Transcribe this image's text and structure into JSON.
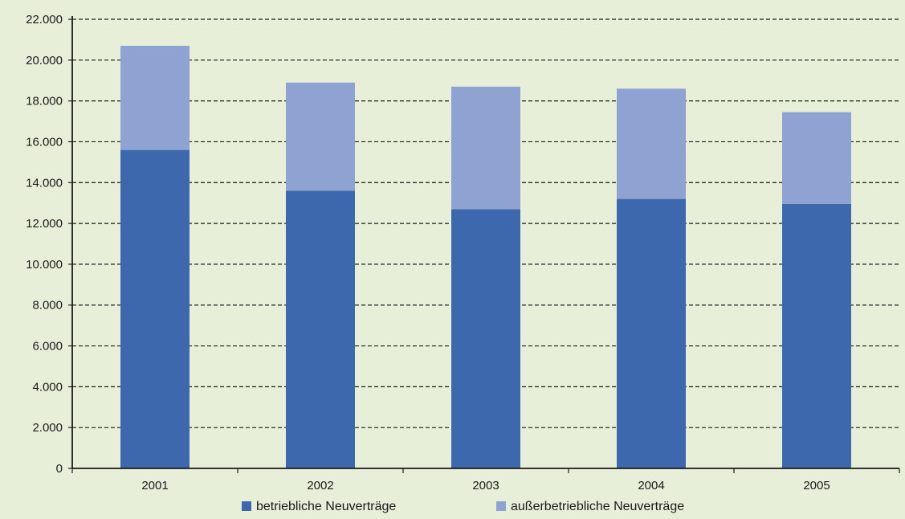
{
  "chart_data": {
    "type": "bar",
    "stacked": true,
    "categories": [
      "2001",
      "2002",
      "2003",
      "2004",
      "2005"
    ],
    "series": [
      {
        "name": "betriebliche Neuverträge",
        "color": "#3d68ad",
        "values": [
          15600,
          13600,
          12700,
          13200,
          12950
        ]
      },
      {
        "name": "außerbetriebliche Neuverträge",
        "color": "#8fa3d2",
        "values": [
          5100,
          5300,
          6000,
          5400,
          4500
        ]
      }
    ],
    "ylim": [
      0,
      22000
    ],
    "yticks": [
      0,
      2000,
      4000,
      6000,
      8000,
      10000,
      12000,
      14000,
      16000,
      18000,
      20000,
      22000
    ],
    "ytick_labels": [
      "0",
      "2.000",
      "4.000",
      "6.000",
      "8.000",
      "10.000",
      "12.000",
      "14.000",
      "16.000",
      "18.000",
      "20.000",
      "22.000"
    ],
    "grid": true,
    "grid_style": "dashed",
    "legend_position": "bottom",
    "title": "",
    "xlabel": "",
    "ylabel": ""
  }
}
